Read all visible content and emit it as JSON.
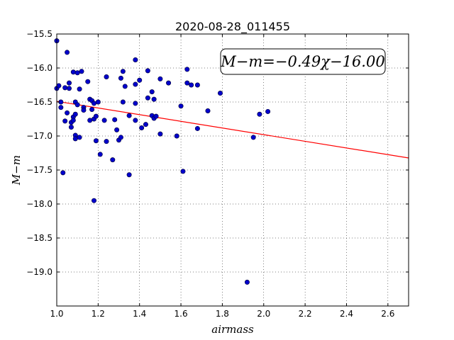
{
  "chart_data": {
    "type": "scatter",
    "title": "2020-08-28_011455",
    "xlabel": "airmass",
    "ylabel": "M−m",
    "xlim": [
      1.0,
      2.7
    ],
    "ylim": [
      -15.5,
      -19.5
    ],
    "y_inverted": true,
    "grid": true,
    "xticks": [
      1.0,
      1.2,
      1.4,
      1.6,
      1.8,
      2.0,
      2.2,
      2.4,
      2.6
    ],
    "xtick_labels": [
      "1.0",
      "1.2",
      "1.4",
      "1.6",
      "1.8",
      "2.0",
      "2.2",
      "2.4",
      "2.6"
    ],
    "yticks": [
      -15.5,
      -16.0,
      -16.5,
      -17.0,
      -17.5,
      -18.0,
      -18.5,
      -19.0
    ],
    "ytick_labels": [
      "−15.5",
      "−16.0",
      "−16.5",
      "−17.0",
      "−17.5",
      "−18.0",
      "−18.5",
      "−19.0"
    ],
    "annotation": "M−m=−0.49χ−16.00",
    "fit": {
      "slope": -0.49,
      "intercept": -16.0,
      "color": "#ff0000"
    },
    "point_color": "#0000cc",
    "points": [
      [
        1.0,
        -15.6
      ],
      [
        1.0,
        -16.3
      ],
      [
        1.01,
        -16.26
      ],
      [
        1.02,
        -16.5
      ],
      [
        1.02,
        -16.58
      ],
      [
        1.03,
        -17.54
      ],
      [
        1.04,
        -16.29
      ],
      [
        1.04,
        -16.78
      ],
      [
        1.05,
        -15.77
      ],
      [
        1.05,
        -16.66
      ],
      [
        1.06,
        -16.22
      ],
      [
        1.06,
        -16.3
      ],
      [
        1.07,
        -16.8
      ],
      [
        1.07,
        -16.87
      ],
      [
        1.08,
        -16.06
      ],
      [
        1.08,
        -16.72
      ],
      [
        1.08,
        -16.77
      ],
      [
        1.09,
        -16.68
      ],
      [
        1.09,
        -16.5
      ],
      [
        1.09,
        -16.99
      ],
      [
        1.09,
        -17.04
      ],
      [
        1.1,
        -16.54
      ],
      [
        1.1,
        -16.07
      ],
      [
        1.11,
        -16.31
      ],
      [
        1.11,
        -17.02
      ],
      [
        1.12,
        -16.05
      ],
      [
        1.13,
        -16.58
      ],
      [
        1.13,
        -16.62
      ],
      [
        1.15,
        -16.2
      ],
      [
        1.16,
        -16.46
      ],
      [
        1.16,
        -16.77
      ],
      [
        1.17,
        -16.48
      ],
      [
        1.17,
        -16.61
      ],
      [
        1.18,
        -16.52
      ],
      [
        1.18,
        -16.75
      ],
      [
        1.18,
        -17.95
      ],
      [
        1.19,
        -16.71
      ],
      [
        1.19,
        -17.07
      ],
      [
        1.2,
        -16.5
      ],
      [
        1.21,
        -17.27
      ],
      [
        1.23,
        -16.77
      ],
      [
        1.24,
        -17.08
      ],
      [
        1.24,
        -16.13
      ],
      [
        1.27,
        -17.35
      ],
      [
        1.28,
        -16.76
      ],
      [
        1.29,
        -16.91
      ],
      [
        1.3,
        -17.06
      ],
      [
        1.31,
        -16.15
      ],
      [
        1.31,
        -17.02
      ],
      [
        1.32,
        -16.05
      ],
      [
        1.32,
        -16.5
      ],
      [
        1.33,
        -16.27
      ],
      [
        1.35,
        -17.57
      ],
      [
        1.35,
        -16.7
      ],
      [
        1.38,
        -15.88
      ],
      [
        1.38,
        -16.24
      ],
      [
        1.38,
        -16.52
      ],
      [
        1.38,
        -16.77
      ],
      [
        1.4,
        -16.18
      ],
      [
        1.41,
        -16.88
      ],
      [
        1.43,
        -16.83
      ],
      [
        1.44,
        -16.04
      ],
      [
        1.44,
        -16.44
      ],
      [
        1.46,
        -16.35
      ],
      [
        1.46,
        -16.7
      ],
      [
        1.47,
        -16.46
      ],
      [
        1.47,
        -16.74
      ],
      [
        1.48,
        -16.71
      ],
      [
        1.5,
        -16.16
      ],
      [
        1.5,
        -16.97
      ],
      [
        1.54,
        -16.22
      ],
      [
        1.58,
        -17.0
      ],
      [
        1.6,
        -16.56
      ],
      [
        1.61,
        -17.52
      ],
      [
        1.63,
        -16.02
      ],
      [
        1.63,
        -16.22
      ],
      [
        1.65,
        -16.25
      ],
      [
        1.68,
        -16.89
      ],
      [
        1.68,
        -16.25
      ],
      [
        1.73,
        -16.63
      ],
      [
        1.79,
        -16.37
      ],
      [
        1.92,
        -19.15
      ],
      [
        1.95,
        -17.02
      ],
      [
        1.98,
        -16.68
      ],
      [
        2.02,
        -16.64
      ]
    ]
  }
}
